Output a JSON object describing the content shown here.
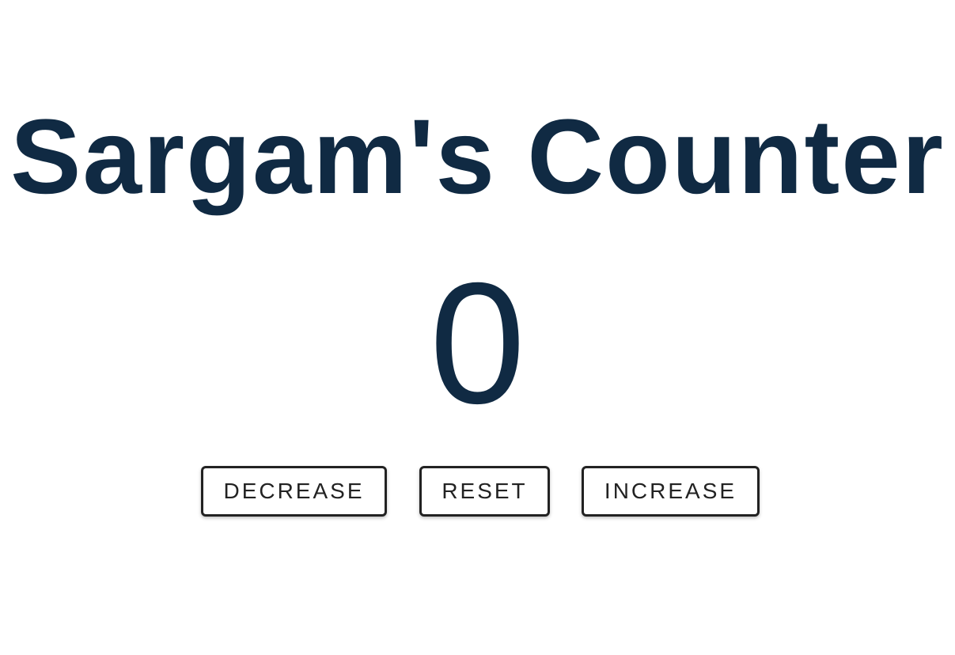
{
  "header": {
    "title": "Sargam's Counter"
  },
  "counter": {
    "value": "0"
  },
  "controls": {
    "decrease_label": "DECREASE",
    "reset_label": "RESET",
    "increase_label": "INCREASE"
  },
  "colors": {
    "text_primary": "#102a43",
    "button_border": "#222222",
    "background": "#ffffff"
  }
}
